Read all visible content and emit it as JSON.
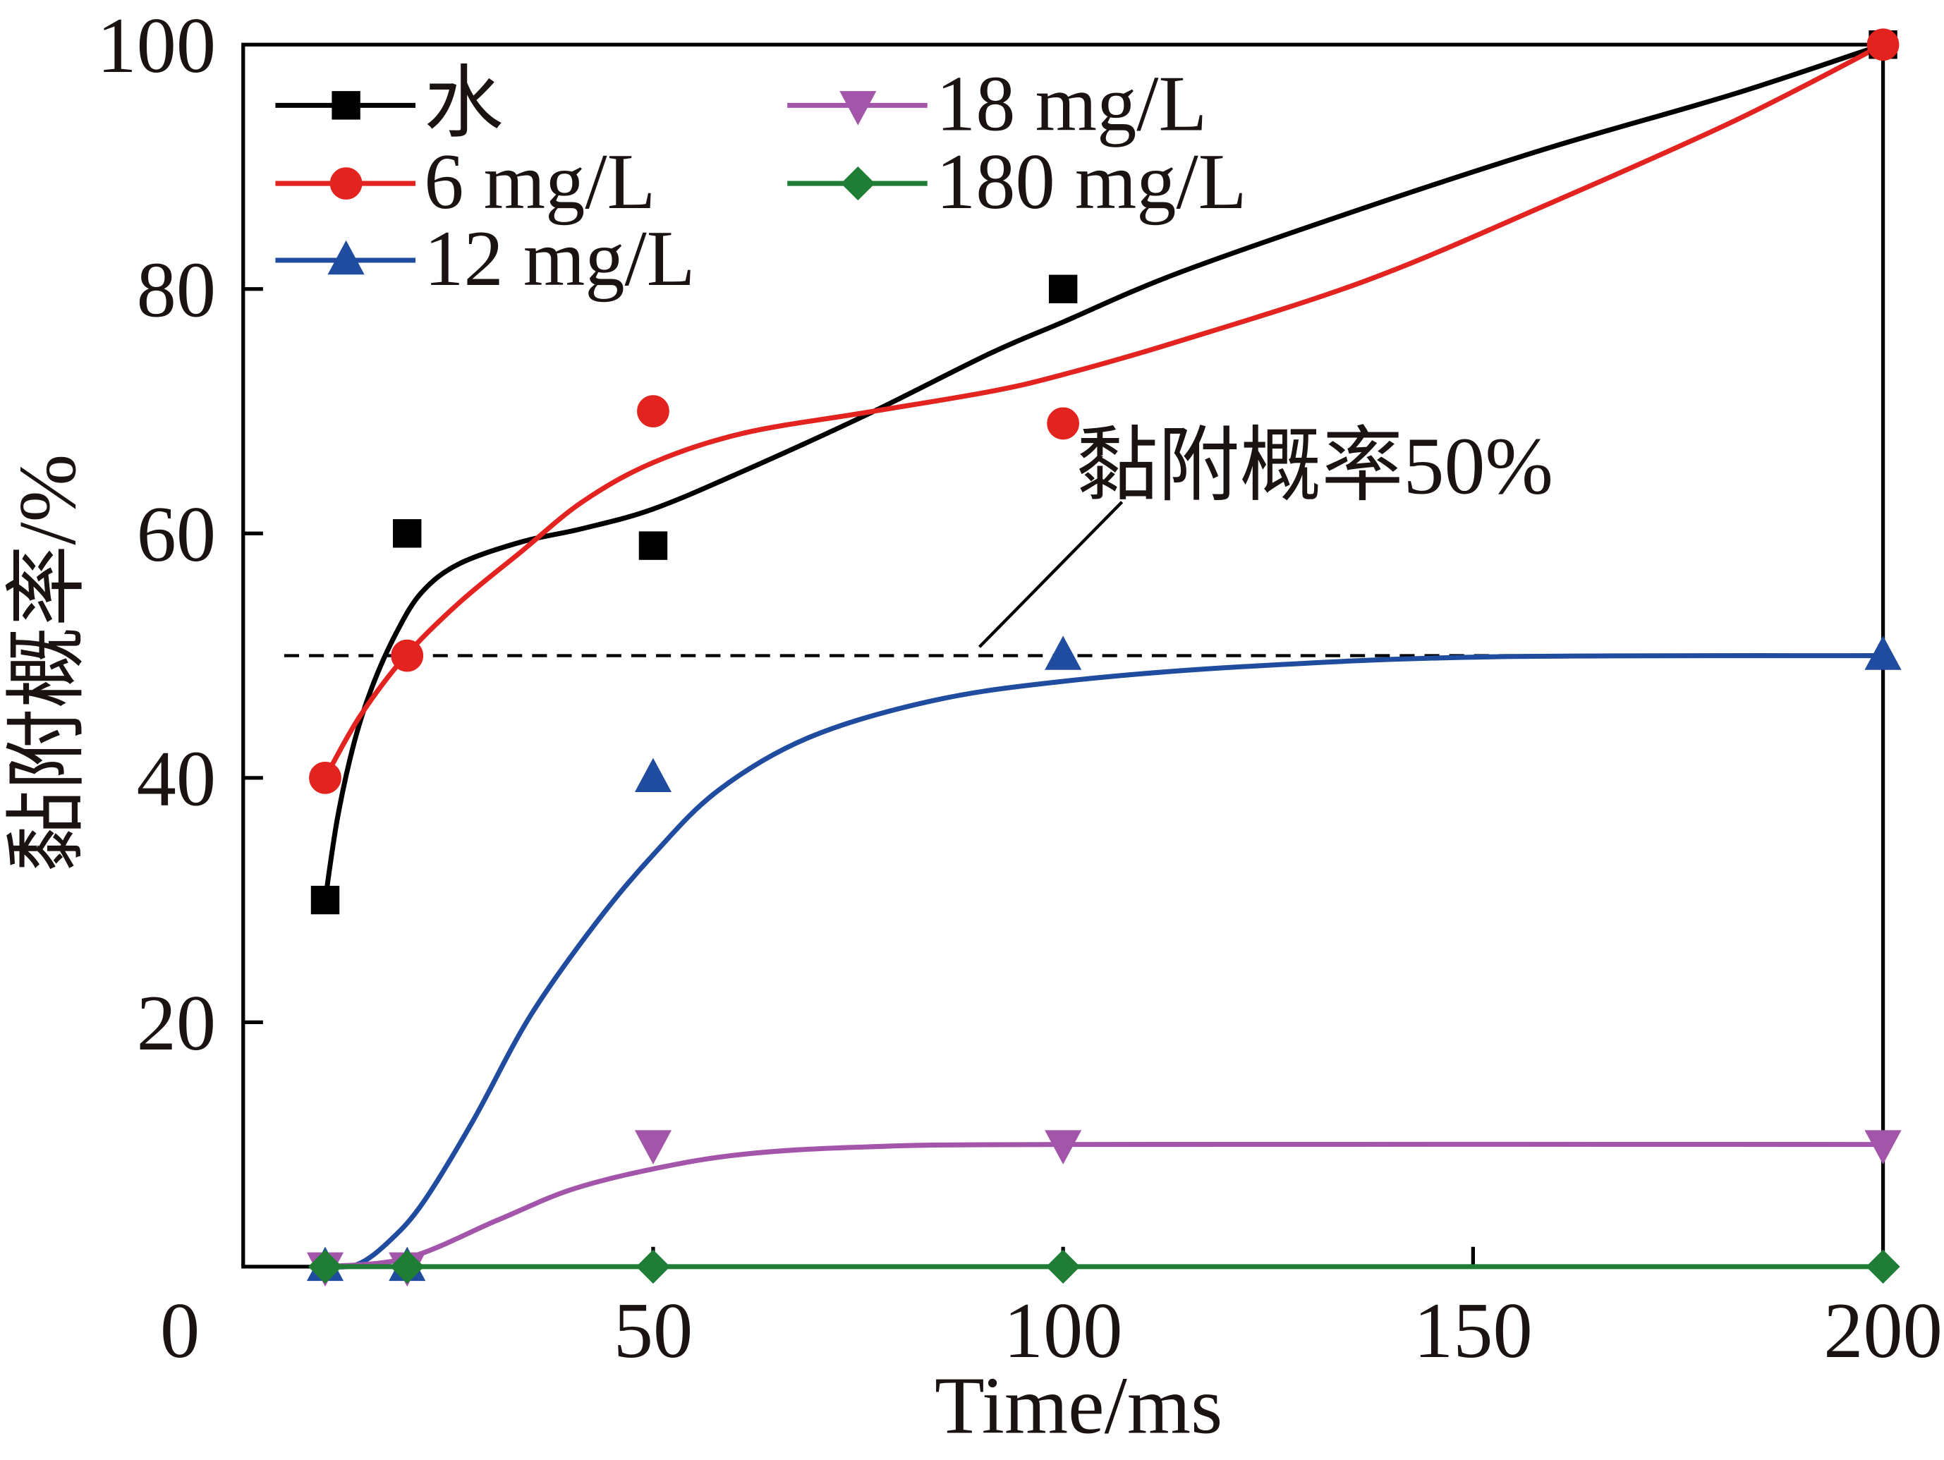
{
  "chart_data": {
    "type": "line",
    "title": "",
    "xlabel": "Time/ms",
    "ylabel": "黏附概率/%",
    "xlim": [
      0,
      200
    ],
    "ylim": [
      0,
      100
    ],
    "x_ticks": [
      50,
      100,
      150,
      200
    ],
    "y_ticks": [
      20,
      40,
      60,
      80,
      100
    ],
    "origin_tick": "0",
    "grid": false,
    "legend_placement": "top-left",
    "x": [
      10,
      20,
      50,
      100,
      200
    ],
    "series": [
      {
        "name": "水",
        "color": "#000000",
        "marker": "square",
        "values": [
          30,
          60,
          59,
          80,
          100
        ],
        "fit": {
          "x": [
            10,
            11.5,
            13.5,
            15.7,
            18.7,
            21.8,
            26.3,
            33.9,
            41.4,
            50,
            61,
            76,
            91,
            100,
            114,
            137,
            159,
            182,
            200
          ],
          "y": [
            30,
            36.7,
            42.8,
            47.4,
            51.9,
            55.2,
            57.5,
            59.3,
            60.4,
            62,
            65.1,
            69.7,
            74.7,
            77.3,
            81.3,
            86.7,
            91.5,
            96,
            100
          ]
        }
      },
      {
        "name": "6 mg/L",
        "color": "#e3231f",
        "marker": "circle",
        "values": [
          40,
          50,
          70,
          69,
          100
        ],
        "fit": {
          "x": [
            10,
            14.2,
            19.7,
            26.3,
            33.9,
            41.4,
            50,
            61,
            76,
            91,
            100,
            114,
            137,
            159,
            182,
            200
          ],
          "y": [
            40,
            45,
            49.9,
            54.3,
            58.5,
            62.6,
            65.8,
            68.2,
            69.9,
            71.6,
            73,
            75.7,
            80.7,
            86.9,
            93.8,
            100
          ]
        }
      },
      {
        "name": "12 mg/L",
        "color": "#1f4c9e",
        "marker": "triangle-up",
        "values": [
          0,
          0,
          40,
          50,
          50
        ],
        "fit": {
          "x": [
            10,
            14,
            18,
            22,
            28,
            35,
            43,
            50,
            58,
            69,
            84,
            100,
            122,
            152,
            200
          ],
          "y": [
            0,
            0.2,
            2.2,
            5.3,
            11.9,
            20.5,
            28.1,
            33.7,
            39,
            43.3,
            46.3,
            47.9,
            49.1,
            49.9,
            50
          ]
        }
      },
      {
        "name": "18 mg/L",
        "color": "#a355a9",
        "marker": "triangle-down",
        "values": [
          0,
          0,
          10,
          10,
          10
        ],
        "fit": {
          "x": [
            10,
            20,
            31,
            40,
            50,
            61,
            76,
            100,
            200
          ],
          "y": [
            0,
            0.7,
            3.8,
            6.3,
            8,
            9.2,
            9.8,
            10,
            10
          ]
        }
      },
      {
        "name": "180 mg/L",
        "color": "#1f7d36",
        "marker": "diamond",
        "values": [
          0,
          0,
          0,
          0,
          0
        ],
        "fit": {
          "x": [
            10,
            200
          ],
          "y": [
            0,
            0
          ]
        }
      }
    ],
    "reference_line": {
      "y": 50,
      "x_range": [
        5,
        200
      ],
      "style": "dashed",
      "color": "#000000"
    },
    "annotation": {
      "text": "黏附概率50%"
    }
  }
}
